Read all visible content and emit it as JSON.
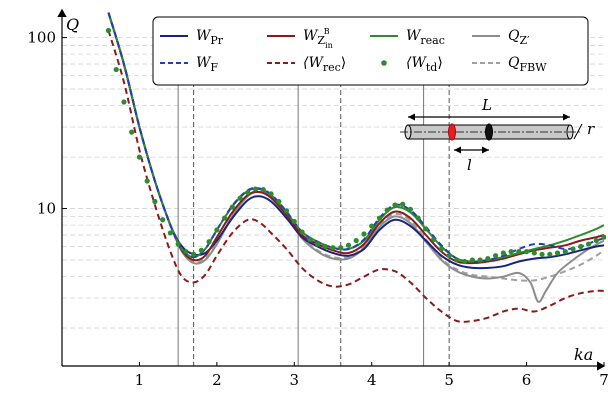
{
  "chart_data": {
    "type": "line",
    "ylog": true,
    "xlabel": "ka",
    "ylabel": "Q",
    "xlim": [
      0,
      7
    ],
    "ylim": [
      1.2,
      145
    ],
    "x_ticks": [
      1,
      2,
      3,
      4,
      5,
      6,
      7
    ],
    "y_ticks": [
      {
        "value": 10,
        "label": "10"
      },
      {
        "value": 100,
        "label": "100"
      }
    ],
    "grid": "dashed horizontal",
    "legend_position": "top-right",
    "vlines_solid": [
      1.5,
      3.05,
      4.67
    ],
    "vlines_dashed": [
      1.7,
      3.6,
      5.0
    ],
    "series": [
      {
        "name": "W_Pr",
        "color": "#1a237e",
        "style": "solid",
        "x": [
          0.6,
          0.8,
          1.0,
          1.2,
          1.4,
          1.55,
          1.7,
          1.85,
          2.0,
          2.2,
          2.4,
          2.55,
          2.7,
          2.9,
          3.1,
          3.3,
          3.5,
          3.7,
          3.9,
          4.1,
          4.3,
          4.5,
          4.7,
          4.9,
          5.1,
          5.3,
          5.5,
          5.7,
          5.9,
          6.1,
          6.3,
          6.5,
          6.7,
          6.9,
          7.0
        ],
        "y": [
          140,
          70,
          30,
          14.5,
          8,
          6,
          5.4,
          5.5,
          6.5,
          8.8,
          11.2,
          11.8,
          11,
          8.8,
          6.8,
          6,
          5.5,
          5.3,
          5.8,
          7.5,
          8.6,
          7.9,
          6.5,
          5.3,
          4.7,
          4.5,
          4.5,
          4.6,
          4.9,
          5.1,
          5.2,
          5.4,
          5.7,
          6,
          6.1
        ]
      },
      {
        "name": "W_Z_in^B",
        "color": "#8b1a1a",
        "style": "solid",
        "x": [
          0.6,
          0.8,
          1.0,
          1.2,
          1.4,
          1.55,
          1.7,
          1.85,
          2.0,
          2.2,
          2.4,
          2.55,
          2.7,
          2.9,
          3.1,
          3.3,
          3.5,
          3.7,
          3.9,
          4.1,
          4.3,
          4.5,
          4.7,
          4.9,
          5.1,
          5.3,
          5.5,
          5.7,
          5.9,
          6.1,
          6.3,
          6.5,
          6.7,
          6.9,
          7.0
        ],
        "y": [
          140,
          70,
          30,
          14.5,
          8,
          5.7,
          5,
          5.3,
          6.8,
          9.5,
          12,
          12.5,
          11.6,
          9.2,
          7,
          6.2,
          5.7,
          5.5,
          6.2,
          8.2,
          9.6,
          8.8,
          7,
          5.6,
          4.9,
          4.8,
          4.9,
          5.1,
          5.4,
          5.7,
          5.9,
          6.1,
          6.5,
          6.8,
          7
        ]
      },
      {
        "name": "W_reac",
        "color": "#2e8b2e",
        "style": "solid",
        "x": [
          0.6,
          0.8,
          1.0,
          1.2,
          1.4,
          1.55,
          1.7,
          1.85,
          2.0,
          2.2,
          2.4,
          2.55,
          2.7,
          2.9,
          3.1,
          3.3,
          3.5,
          3.7,
          3.9,
          4.1,
          4.3,
          4.5,
          4.7,
          4.9,
          5.1,
          5.3,
          5.5,
          5.7,
          5.9,
          6.1,
          6.3,
          6.5,
          6.7,
          6.9,
          7.0
        ],
        "y": [
          140,
          70,
          30,
          14.5,
          8,
          5.8,
          5.2,
          5.8,
          7.5,
          10.3,
          12.7,
          13,
          12,
          9.5,
          7.3,
          6.4,
          5.9,
          5.8,
          6.5,
          8.6,
          10.2,
          9.5,
          7.6,
          6,
          5.1,
          4.9,
          5,
          5.2,
          5.5,
          5.8,
          6.1,
          6.5,
          7,
          7.6,
          8
        ]
      },
      {
        "name": "Q_Z'",
        "color": "#8c8c8c",
        "style": "solid",
        "x": [
          0.6,
          0.8,
          1.0,
          1.2,
          1.4,
          1.55,
          1.7,
          1.85,
          2.0,
          2.2,
          2.4,
          2.55,
          2.7,
          2.9,
          3.1,
          3.3,
          3.5,
          3.7,
          3.9,
          4.1,
          4.3,
          4.5,
          4.7,
          4.9,
          5.1,
          5.3,
          5.5,
          5.7,
          5.9,
          6.05,
          6.15,
          6.25,
          6.4,
          6.6,
          6.8,
          7.0
        ],
        "y": [
          140,
          70,
          30,
          14.5,
          8,
          5.6,
          4.8,
          5,
          6.2,
          9,
          11.8,
          12.5,
          11.5,
          9,
          6.7,
          5.6,
          5.1,
          5.1,
          5.9,
          7.8,
          9,
          8.2,
          6.4,
          5,
          4.3,
          4,
          3.9,
          4,
          4.2,
          3.7,
          2.85,
          3.3,
          4.2,
          5,
          5.8,
          6.5
        ]
      },
      {
        "name": "W_F",
        "color": "#1f3fbf",
        "style": "dashed",
        "x": [
          0.6,
          0.8,
          1.0,
          1.2,
          1.4,
          1.55,
          1.7,
          1.85,
          2.0,
          2.2,
          2.4,
          2.55,
          2.7,
          2.9,
          3.1,
          3.3,
          3.5,
          3.7,
          3.9,
          4.1,
          4.3,
          4.5,
          4.7,
          4.9,
          5.1,
          5.3,
          5.5,
          5.7,
          5.9,
          6.1,
          6.3,
          6.5,
          6.7,
          6.9,
          7.0
        ],
        "y": [
          140,
          70,
          30,
          14.5,
          8,
          5.8,
          5.2,
          5.8,
          7.5,
          10.4,
          12.8,
          13.1,
          12.1,
          9.6,
          7.3,
          6.4,
          5.9,
          5.8,
          6.6,
          8.8,
          10.5,
          9.8,
          7.8,
          6.1,
          5.1,
          4.9,
          5,
          5.3,
          5.8,
          6.2,
          6.1,
          5.8,
          6,
          6.5,
          6.7
        ]
      },
      {
        "name": "<W_rec>",
        "color": "#8b1a1a",
        "style": "dashed",
        "x": [
          0.6,
          0.8,
          1.0,
          1.2,
          1.4,
          1.55,
          1.7,
          1.85,
          2.0,
          2.2,
          2.4,
          2.55,
          2.7,
          2.9,
          3.1,
          3.3,
          3.5,
          3.7,
          3.9,
          4.1,
          4.3,
          4.5,
          4.7,
          4.9,
          5.1,
          5.3,
          5.5,
          5.7,
          5.9,
          6.1,
          6.3,
          6.5,
          6.7,
          6.9,
          7.0
        ],
        "y": [
          110,
          55,
          22,
          10.5,
          5.6,
          4,
          3.7,
          4.1,
          5.3,
          7.2,
          8.6,
          8.3,
          7.2,
          5.8,
          4.5,
          3.8,
          3.5,
          3.6,
          4,
          4.4,
          4.3,
          3.7,
          3,
          2.5,
          2.2,
          2.2,
          2.3,
          2.5,
          2.6,
          2.5,
          2.7,
          3,
          3.2,
          3.3,
          3.3
        ]
      },
      {
        "name": "<W_td>",
        "color": "#2e8b2e",
        "style": "dots",
        "x": [
          0.6,
          0.7,
          0.8,
          0.9,
          1.0,
          1.1,
          1.2,
          1.3,
          1.4,
          1.5,
          1.6,
          1.7,
          1.8,
          1.9,
          2.0,
          2.1,
          2.2,
          2.3,
          2.4,
          2.5,
          2.6,
          2.7,
          2.8,
          2.9,
          3.0,
          3.1,
          3.2,
          3.3,
          3.4,
          3.5,
          3.6,
          3.7,
          3.8,
          3.9,
          4.0,
          4.1,
          4.2,
          4.3,
          4.4,
          4.5,
          4.6,
          4.7,
          4.8,
          4.9,
          5.0,
          5.1,
          5.2,
          5.3,
          5.4,
          5.5,
          5.6,
          5.7,
          5.8,
          5.9,
          6.0,
          6.1,
          6.2,
          6.3,
          6.4,
          6.5,
          6.6,
          6.7,
          6.8,
          6.9,
          7.0
        ],
        "y": [
          110,
          65,
          42,
          28,
          20,
          14.5,
          11,
          8.6,
          7.2,
          6.2,
          5.6,
          5.4,
          5.7,
          6.4,
          7.5,
          8.8,
          10.2,
          11.5,
          12.4,
          13,
          12.9,
          12.2,
          11,
          9.7,
          8.4,
          7.3,
          6.6,
          6.2,
          6,
          5.9,
          5.9,
          6.1,
          6.5,
          7.1,
          7.9,
          8.8,
          9.8,
          10.5,
          10.6,
          9.9,
          8.8,
          7.6,
          6.6,
          5.8,
          5.3,
          5,
          4.9,
          5,
          5,
          5.1,
          5.3,
          5.5,
          5.6,
          5.6,
          5.6,
          5.5,
          5.4,
          5.4,
          5.5,
          5.6,
          5.8,
          6,
          6.2,
          6.5,
          6.8
        ]
      },
      {
        "name": "Q_FBW",
        "color": "#a0a0a0",
        "style": "dashed",
        "x": [
          0.6,
          0.8,
          1.0,
          1.2,
          1.4,
          1.55,
          1.7,
          1.85,
          2.0,
          2.2,
          2.4,
          2.55,
          2.7,
          2.9,
          3.1,
          3.3,
          3.5,
          3.7,
          3.9,
          4.1,
          4.3,
          4.5,
          4.7,
          4.9,
          5.1,
          5.3,
          5.5,
          5.7,
          5.9,
          6.1,
          6.3,
          6.5,
          6.7,
          6.9,
          7.0
        ],
        "y": [
          140,
          70,
          30,
          14.5,
          8,
          5.6,
          4.9,
          5.1,
          6.3,
          9.1,
          11.9,
          12.6,
          11.6,
          9.1,
          6.8,
          5.7,
          5.2,
          5.2,
          6,
          8,
          9.3,
          8.5,
          6.6,
          5.1,
          4.4,
          4.1,
          4,
          3.9,
          3.8,
          3.8,
          4,
          4.3,
          4.7,
          5.3,
          5.7
        ]
      }
    ],
    "legend": [
      {
        "label": "W_Pr",
        "col": 0,
        "row": 0,
        "series": 0
      },
      {
        "label": "W_Z_in^B",
        "col": 1,
        "row": 0,
        "series": 1
      },
      {
        "label": "W_reac",
        "col": 2,
        "row": 0,
        "series": 2
      },
      {
        "label": "Q_Z'",
        "col": 3,
        "row": 0,
        "series": 3
      },
      {
        "label": "W_F",
        "col": 0,
        "row": 1,
        "series": 4
      },
      {
        "label": "<W_rec>",
        "col": 1,
        "row": 1,
        "series": 5
      },
      {
        "label": "<W_td>",
        "col": 2,
        "row": 1,
        "series": 6
      },
      {
        "label": "Q_FBW",
        "col": 3,
        "row": 1,
        "series": 7
      }
    ],
    "inset": {
      "length_label": "L",
      "feed_label": "l",
      "radius_label": "r"
    }
  }
}
